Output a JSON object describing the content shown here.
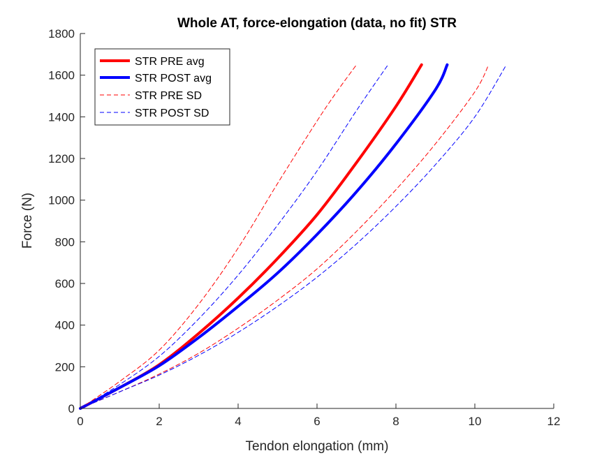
{
  "chart_data": {
    "type": "line",
    "title": "Whole AT, force-elongation (data, no fit) STR",
    "xlabel": "Tendon elongation (mm)",
    "ylabel": "Force (N)",
    "xlim": [
      0,
      12
    ],
    "ylim": [
      0,
      1800
    ],
    "xticks": [
      0,
      2,
      4,
      6,
      8,
      10,
      12
    ],
    "yticks": [
      0,
      200,
      400,
      600,
      800,
      1000,
      1200,
      1400,
      1600,
      1800
    ],
    "grid": false,
    "legend_position": "top-left",
    "series": [
      {
        "name": "STR PRE avg",
        "color": "#ff0000",
        "style": "solid",
        "x": [
          0,
          1,
          2,
          3,
          4,
          5,
          6,
          7,
          8,
          8.65
        ],
        "y": [
          0,
          100,
          210,
          360,
          530,
          720,
          930,
          1180,
          1450,
          1650
        ]
      },
      {
        "name": "STR POST avg",
        "color": "#0000ff",
        "style": "solid",
        "x": [
          0,
          1,
          2,
          3,
          4,
          5,
          6,
          7,
          8,
          9,
          9.3
        ],
        "y": [
          0,
          100,
          205,
          340,
          490,
          650,
          835,
          1040,
          1270,
          1530,
          1650
        ]
      },
      {
        "name": "STR PRE SD",
        "color": "#ff0000",
        "style": "dashed",
        "x": [
          0,
          1,
          2,
          3,
          4,
          5,
          6,
          6.5,
          7
        ],
        "y": [
          0,
          130,
          280,
          500,
          770,
          1080,
          1380,
          1520,
          1650
        ]
      },
      {
        "name": "",
        "color": "#ff0000",
        "style": "dashed",
        "x": [
          0,
          1,
          2,
          3,
          4,
          5,
          6,
          7,
          8,
          9,
          10,
          10.35
        ],
        "y": [
          0,
          80,
          165,
          265,
          385,
          520,
          670,
          850,
          1050,
          1270,
          1520,
          1650
        ]
      },
      {
        "name": "STR POST SD",
        "color": "#0000ff",
        "style": "dashed",
        "x": [
          0,
          1,
          2,
          3,
          4,
          5,
          6,
          7,
          7.8
        ],
        "y": [
          0,
          115,
          250,
          430,
          640,
          880,
          1140,
          1430,
          1650
        ]
      },
      {
        "name": "",
        "color": "#0000ff",
        "style": "dashed",
        "x": [
          0,
          1,
          2,
          3,
          4,
          5,
          6,
          7,
          8,
          9,
          10,
          10.8
        ],
        "y": [
          0,
          80,
          160,
          255,
          365,
          490,
          630,
          790,
          970,
          1170,
          1400,
          1650
        ]
      }
    ]
  }
}
